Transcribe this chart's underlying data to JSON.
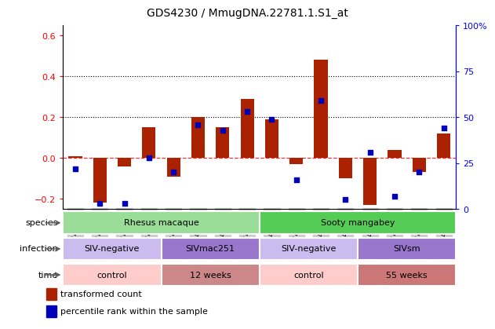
{
  "title": "GDS4230 / MmugDNA.22781.1.S1_at",
  "samples": [
    "GSM742045",
    "GSM742046",
    "GSM742047",
    "GSM742048",
    "GSM742049",
    "GSM742050",
    "GSM742051",
    "GSM742052",
    "GSM742053",
    "GSM742054",
    "GSM742056",
    "GSM742059",
    "GSM742060",
    "GSM742062",
    "GSM742064",
    "GSM742066"
  ],
  "bar_values": [
    0.01,
    -0.22,
    -0.04,
    0.15,
    -0.09,
    0.2,
    0.15,
    0.29,
    0.19,
    -0.03,
    0.48,
    -0.1,
    -0.23,
    0.04,
    -0.07,
    0.12
  ],
  "scatter_pct": [
    22,
    3,
    3,
    28,
    20,
    46,
    43,
    53,
    49,
    16,
    59,
    5,
    31,
    7,
    20,
    44
  ],
  "bar_color": "#AA2200",
  "scatter_color": "#0000BB",
  "ylim_left": [
    -0.25,
    0.65
  ],
  "ylim_right": [
    0,
    100
  ],
  "yticks_left": [
    -0.2,
    0.0,
    0.2,
    0.4,
    0.6
  ],
  "yticks_right": [
    0,
    25,
    50,
    75,
    100
  ],
  "ytick_labels_right": [
    "0",
    "25",
    "50",
    "75",
    "100%"
  ],
  "species_groups": [
    {
      "label": "Rhesus macaque",
      "start": 0,
      "end": 8,
      "color": "#99DD99"
    },
    {
      "label": "Sooty mangabey",
      "start": 8,
      "end": 16,
      "color": "#55CC55"
    }
  ],
  "infection_groups": [
    {
      "label": "SIV-negative",
      "start": 0,
      "end": 4,
      "color": "#CCBBEE"
    },
    {
      "label": "SIVmac251",
      "start": 4,
      "end": 8,
      "color": "#9977CC"
    },
    {
      "label": "SIV-negative",
      "start": 8,
      "end": 12,
      "color": "#CCBBEE"
    },
    {
      "label": "SIVsm",
      "start": 12,
      "end": 16,
      "color": "#9977CC"
    }
  ],
  "time_groups": [
    {
      "label": "control",
      "start": 0,
      "end": 4,
      "color": "#FFCCCC"
    },
    {
      "label": "12 weeks",
      "start": 4,
      "end": 8,
      "color": "#CC8888"
    },
    {
      "label": "control",
      "start": 8,
      "end": 12,
      "color": "#FFCCCC"
    },
    {
      "label": "55 weeks",
      "start": 12,
      "end": 16,
      "color": "#CC7777"
    }
  ],
  "legend_items": [
    {
      "label": "transformed count",
      "color": "#AA2200"
    },
    {
      "label": "percentile rank within the sample",
      "color": "#0000BB"
    }
  ],
  "row_labels": [
    "species",
    "infection",
    "time"
  ],
  "xtick_bg": "#CCCCCC"
}
